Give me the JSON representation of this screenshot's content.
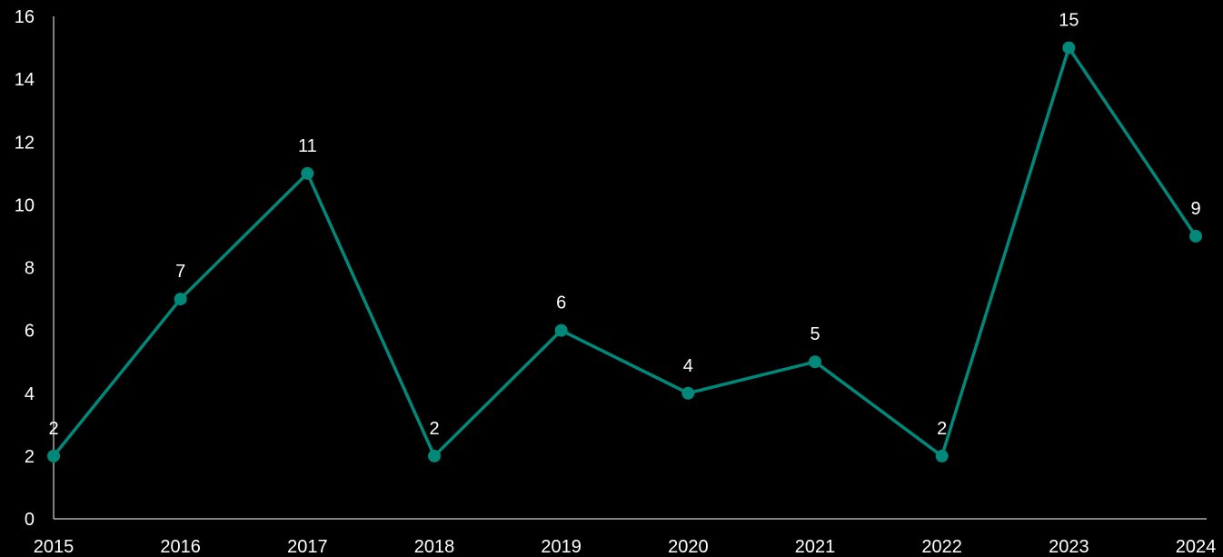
{
  "chart_data": {
    "type": "line",
    "title": "",
    "xlabel": "",
    "ylabel": "",
    "categories": [
      "2015",
      "2016",
      "2017",
      "2018",
      "2019",
      "2020",
      "2021",
      "2022",
      "2023",
      "2024"
    ],
    "series": [
      {
        "values": [
          2,
          7,
          11,
          2,
          6,
          4,
          5,
          2,
          15,
          9
        ],
        "color": "#00897b"
      }
    ],
    "ylim": [
      0,
      16
    ],
    "yticks": [
      "0",
      "2",
      "4",
      "6",
      "8",
      "10",
      "12",
      "14",
      "16"
    ],
    "data_labels": [
      "2",
      "7",
      "11",
      "2",
      "6",
      "4",
      "5",
      "2",
      "15",
      "9"
    ],
    "grid": false,
    "legend": "none",
    "colors": {
      "background": "#000000",
      "axis": "#ffffff",
      "text": "#ffffff",
      "line": "#00897b"
    }
  }
}
